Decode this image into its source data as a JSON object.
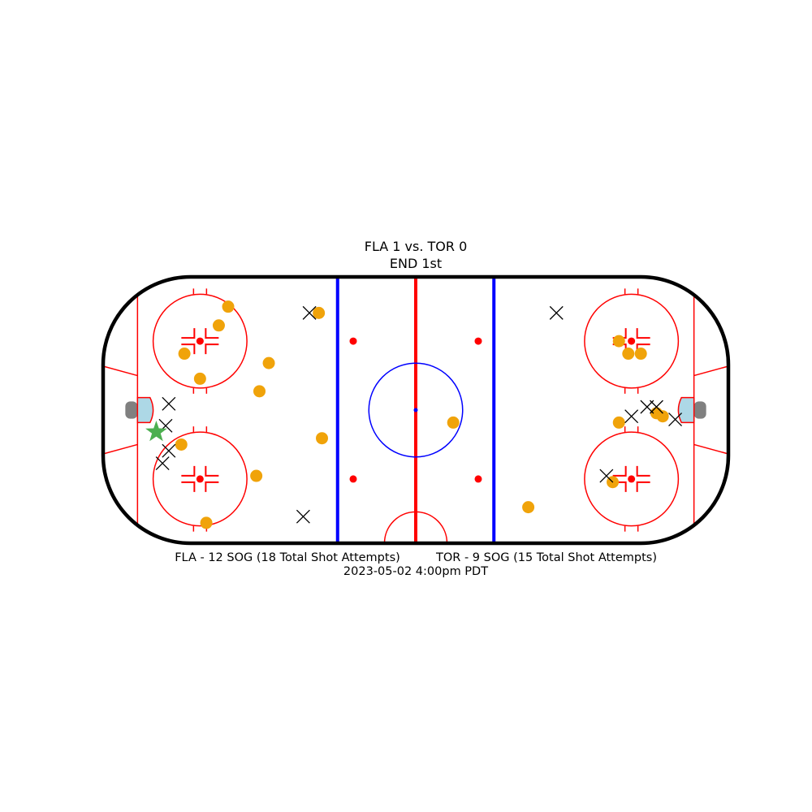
{
  "chart_data": {
    "type": "scatter",
    "title": "FLA 1 vs. TOR 0",
    "subtitle": "END 1st",
    "xlim": [
      -100,
      100
    ],
    "ylim": [
      -42.5,
      42.5
    ],
    "grid": false,
    "series": [
      {
        "name": "",
        "marker": "circle",
        "color": "#f0a30a",
        "points": [
          [
            -60,
            33
          ],
          [
            -63,
            27
          ],
          [
            -74,
            18
          ],
          [
            -69,
            10
          ],
          [
            -47,
            15
          ],
          [
            -50,
            6
          ],
          [
            -31,
            31
          ],
          [
            -30,
            -9
          ],
          [
            -75,
            -11
          ],
          [
            -51,
            -21
          ],
          [
            -67,
            -36
          ],
          [
            12,
            -4
          ],
          [
            65,
            22
          ],
          [
            68,
            18
          ],
          [
            72,
            18
          ],
          [
            65,
            -4
          ],
          [
            77,
            -1
          ],
          [
            79,
            -2
          ],
          [
            63,
            -23
          ],
          [
            36,
            -31
          ]
        ]
      },
      {
        "name": "",
        "marker": "x",
        "color": "#000000",
        "points": [
          [
            -34,
            31
          ],
          [
            -79,
            2
          ],
          [
            -80,
            -5
          ],
          [
            -79,
            -13
          ],
          [
            -81,
            -17
          ],
          [
            -36,
            -34
          ],
          [
            45,
            31
          ],
          [
            69,
            -2
          ],
          [
            74,
            1
          ],
          [
            77,
            1
          ],
          [
            83,
            -3
          ],
          [
            61,
            -21
          ]
        ]
      },
      {
        "name": "",
        "marker": "star",
        "color": "#4caf50",
        "points": [
          [
            -83,
            -7
          ]
        ]
      }
    ],
    "footer": {
      "left": "FLA - 12 SOG (18 Total Shot Attempts)",
      "right": "TOR - 9 SOG (15 Total Shot Attempts)",
      "date": "2023-05-02 4:00pm PDT"
    }
  },
  "colors": {
    "boards": "#000000",
    "red_line": "#ff0000",
    "blue_line": "#0000ff",
    "crease": "#add8e6",
    "net": "#808080",
    "center_circle": "#0000ff"
  }
}
